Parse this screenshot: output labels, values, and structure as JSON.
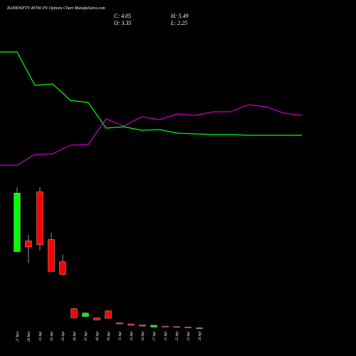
{
  "chart_data": [
    {
      "type": "candlestick",
      "title": "BANKNIFTY 49700 PE Options Chart MunafaSutra.com",
      "stats": [
        "C: 4.05",
        "H: 5.49",
        "O: 3.35",
        "L: 2.25"
      ],
      "categories": [
        "27 Mar",
        "28 Mar",
        "01 Apr",
        "02 Apr",
        "03 Apr",
        "04 Apr",
        "07 Apr",
        "08 Apr",
        "09 Apr",
        "11 Apr",
        "15 Apr",
        "16 Apr",
        "17 Apr",
        "21 Apr",
        "22 Apr",
        "23 Apr",
        "24 Apr"
      ],
      "open": [
        178,
        203,
        315,
        206,
        155,
        48,
        30,
        27,
        43,
        16,
        13,
        11,
        6,
        8,
        7,
        6,
        3.35
      ],
      "high": [
        325,
        216,
        325,
        221,
        171,
        50,
        40,
        27,
        44,
        16,
        13,
        11,
        10,
        8,
        7,
        6,
        5.49
      ],
      "low": [
        178,
        152,
        181,
        133,
        123,
        27,
        29,
        22,
        25,
        13,
        10,
        8,
        6,
        6,
        6,
        5,
        2.25
      ],
      "close": [
        312,
        189,
        194,
        133,
        126,
        27,
        38,
        22,
        26,
        13,
        10,
        8,
        10,
        6,
        6,
        5,
        4.05
      ],
      "up_color": "#00ff00",
      "down_color": "#ff0000",
      "ylim": [
        0,
        330
      ]
    },
    {
      "type": "line",
      "series": [
        {
          "color": "#00ff00",
          "values": [
            177,
            177,
            130,
            132,
            109,
            106,
            70,
            72,
            67,
            68,
            63,
            62,
            61,
            61,
            60,
            60,
            60,
            60
          ]
        },
        {
          "color": "#cc00cc",
          "values": [
            18,
            18,
            33,
            34,
            46,
            47,
            83,
            73,
            86,
            82,
            90,
            88,
            93,
            93,
            103,
            100,
            91,
            88
          ]
        }
      ],
      "ylim": [
        0,
        250
      ]
    }
  ]
}
